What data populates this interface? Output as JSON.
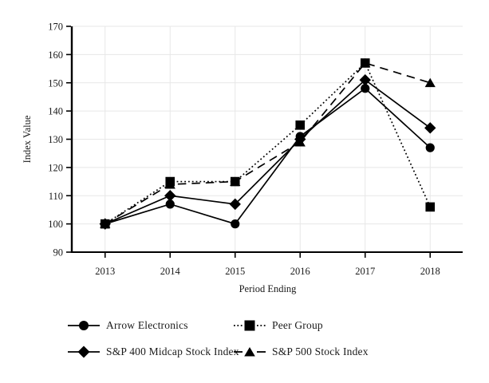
{
  "chart_data": {
    "type": "line",
    "title": "",
    "xlabel": "Period Ending",
    "ylabel": "Index Value",
    "categories": [
      "2013",
      "2014",
      "2015",
      "2016",
      "2017",
      "2018"
    ],
    "ylim": [
      90,
      170
    ],
    "yticks": [
      90,
      100,
      110,
      120,
      130,
      140,
      150,
      160,
      170
    ],
    "grid": true,
    "legend_position": "bottom",
    "series": [
      {
        "name": "Arrow Electronics",
        "marker": "circle",
        "line": "solid",
        "values": [
          100,
          107,
          100,
          131,
          148,
          127
        ]
      },
      {
        "name": "Peer Group",
        "marker": "square",
        "line": "dotted",
        "values": [
          100,
          115,
          115,
          135,
          157,
          106
        ]
      },
      {
        "name": "S&P 400 Midcap Stock Index",
        "marker": "diamond",
        "line": "solid",
        "values": [
          100,
          110,
          107,
          130,
          151,
          134
        ]
      },
      {
        "name": "S&P 500 Stock Index",
        "marker": "triangle",
        "line": "dashed",
        "values": [
          100,
          114,
          115,
          129,
          157,
          150
        ]
      }
    ],
    "colors": {
      "series": "#000000",
      "grid": "#e7e7e7",
      "axis": "#000000",
      "text": "#1a1a1a",
      "background": "#ffffff"
    }
  }
}
